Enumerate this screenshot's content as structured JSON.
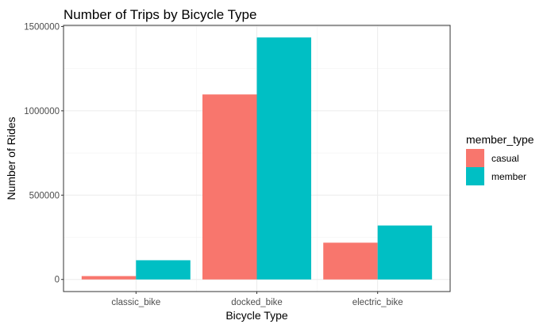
{
  "chart_data": {
    "type": "bar",
    "title": "Number of Trips by Bicycle Type",
    "xlabel": "Bicycle Type",
    "ylabel": "Number of Rides",
    "categories": [
      "classic_bike",
      "docked_bike",
      "electric_bike"
    ],
    "series": [
      {
        "name": "casual",
        "values": [
          20000,
          1097000,
          218000
        ],
        "color": "#F8766D"
      },
      {
        "name": "member",
        "values": [
          114000,
          1435000,
          320000
        ],
        "color": "#00BFC4"
      }
    ],
    "ylim": [
      -71750,
      1506750
    ],
    "yticks": [
      0,
      500000,
      1000000,
      1500000
    ],
    "ytick_labels": [
      "0",
      "500000",
      "1000000",
      "1500000"
    ],
    "legend": {
      "title": "member_type",
      "position": "right"
    },
    "grid": true
  }
}
